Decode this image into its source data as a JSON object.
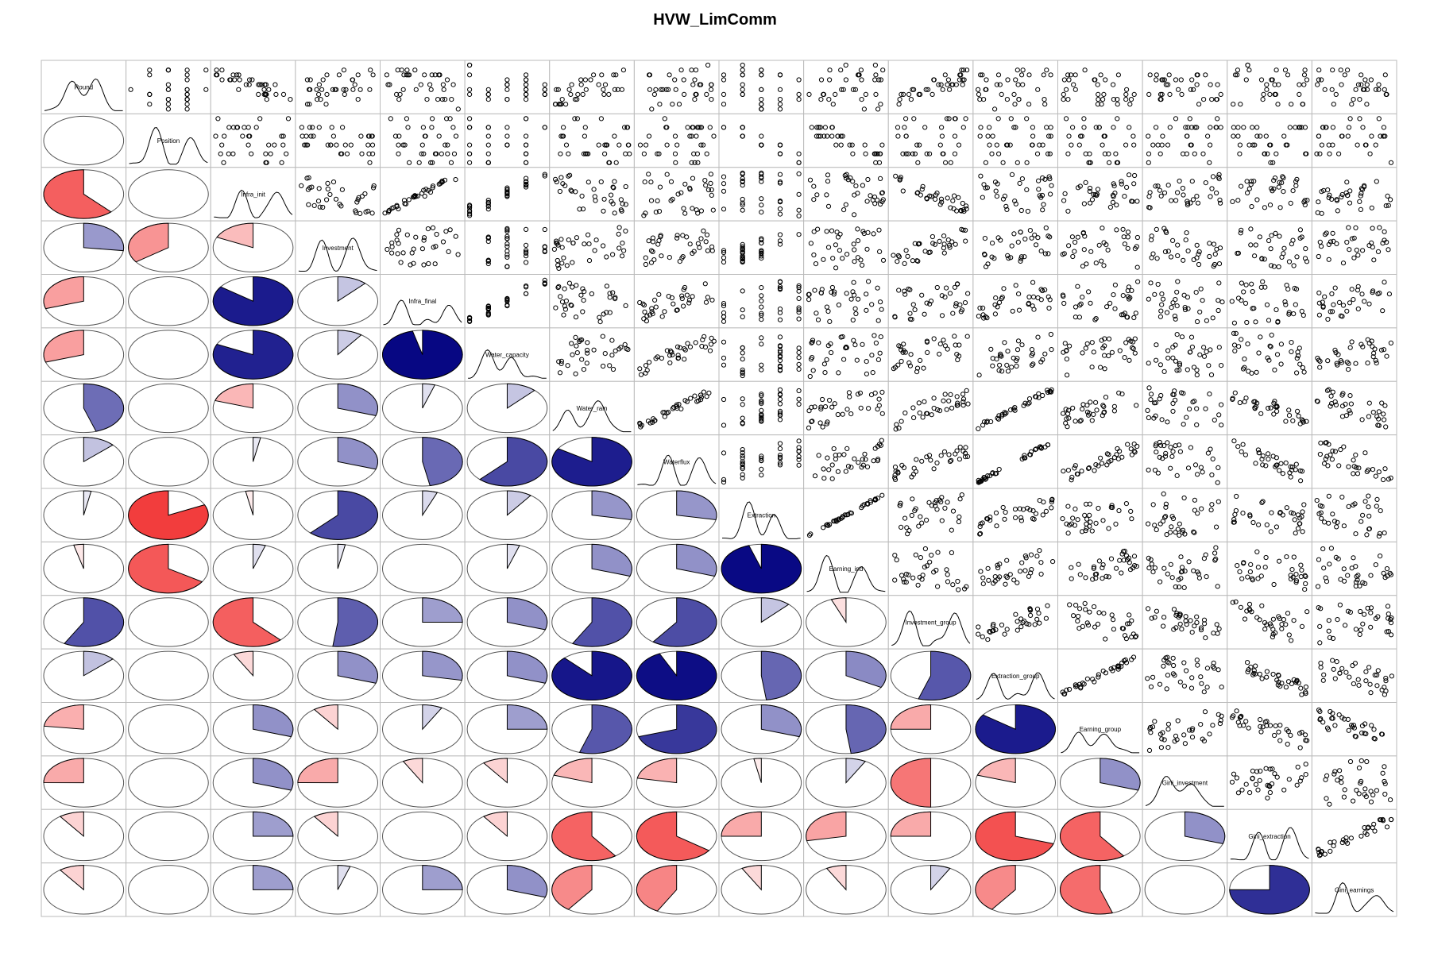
{
  "chart_data": {
    "type": "corrgram",
    "title": "HVW_LimComm",
    "panels": {
      "lower": "pie (filled angle = |r|; blue positive, red negative)",
      "diagonal": "density curve with variable name",
      "upper": "scatter points"
    },
    "variables": [
      "Round",
      "Position",
      "Infra_init",
      "Investment",
      "Infra_final",
      "Water_capacity",
      "Water_rain",
      "Waterflux",
      "Extraction",
      "Earning_ind",
      "Investment_group",
      "Extraction_group",
      "Earning_group",
      "Gini_investment",
      "Gini_extraction",
      "Gini_earnings"
    ],
    "colors": {
      "positive": "#00007F",
      "negative": "#F02020",
      "outline": "#555555",
      "points": "#000000"
    },
    "lower_correlations": [
      [],
      [
        0.0
      ],
      [
        -0.62,
        0.0
      ],
      [
        0.27,
        -0.35,
        -0.18
      ],
      [
        -0.3,
        0.0,
        0.85,
        0.12
      ],
      [
        -0.3,
        0.0,
        0.82,
        0.1,
        0.96
      ],
      [
        0.45,
        0.0,
        -0.2,
        0.3,
        0.05,
        0.12
      ],
      [
        0.13,
        0.0,
        0.03,
        0.3,
        0.47,
        0.62,
        0.84
      ],
      [
        0.03,
        -0.82,
        -0.03,
        0.62,
        0.06,
        0.1,
        0.28,
        0.28
      ],
      [
        -0.04,
        -0.66,
        0.05,
        0.03,
        0.0,
        0.05,
        0.3,
        0.3,
        0.95
      ],
      [
        0.58,
        0.0,
        -0.62,
        0.52,
        0.25,
        0.3,
        0.58,
        0.6,
        0.12,
        -0.06
      ],
      [
        0.13,
        0.0,
        -0.08,
        0.3,
        0.28,
        0.3,
        0.88,
        0.93,
        0.48,
        0.33,
        0.55
      ],
      [
        -0.23,
        0.0,
        0.3,
        -0.1,
        0.08,
        0.25,
        0.55,
        0.7,
        0.3,
        0.48,
        -0.25,
        0.85
      ],
      [
        -0.25,
        0.0,
        0.3,
        -0.25,
        -0.08,
        -0.1,
        -0.2,
        -0.22,
        -0.03,
        0.08,
        -0.5,
        -0.2,
        0.3
      ],
      [
        -0.1,
        0.0,
        0.25,
        -0.1,
        0.0,
        -0.1,
        -0.6,
        -0.65,
        -0.25,
        -0.28,
        -0.25,
        -0.7,
        -0.6,
        0.3
      ],
      [
        -0.1,
        0.0,
        0.25,
        0.05,
        0.25,
        0.3,
        -0.4,
        -0.42,
        -0.08,
        -0.08,
        0.08,
        -0.4,
        -0.55,
        0.0,
        0.75
      ]
    ]
  }
}
